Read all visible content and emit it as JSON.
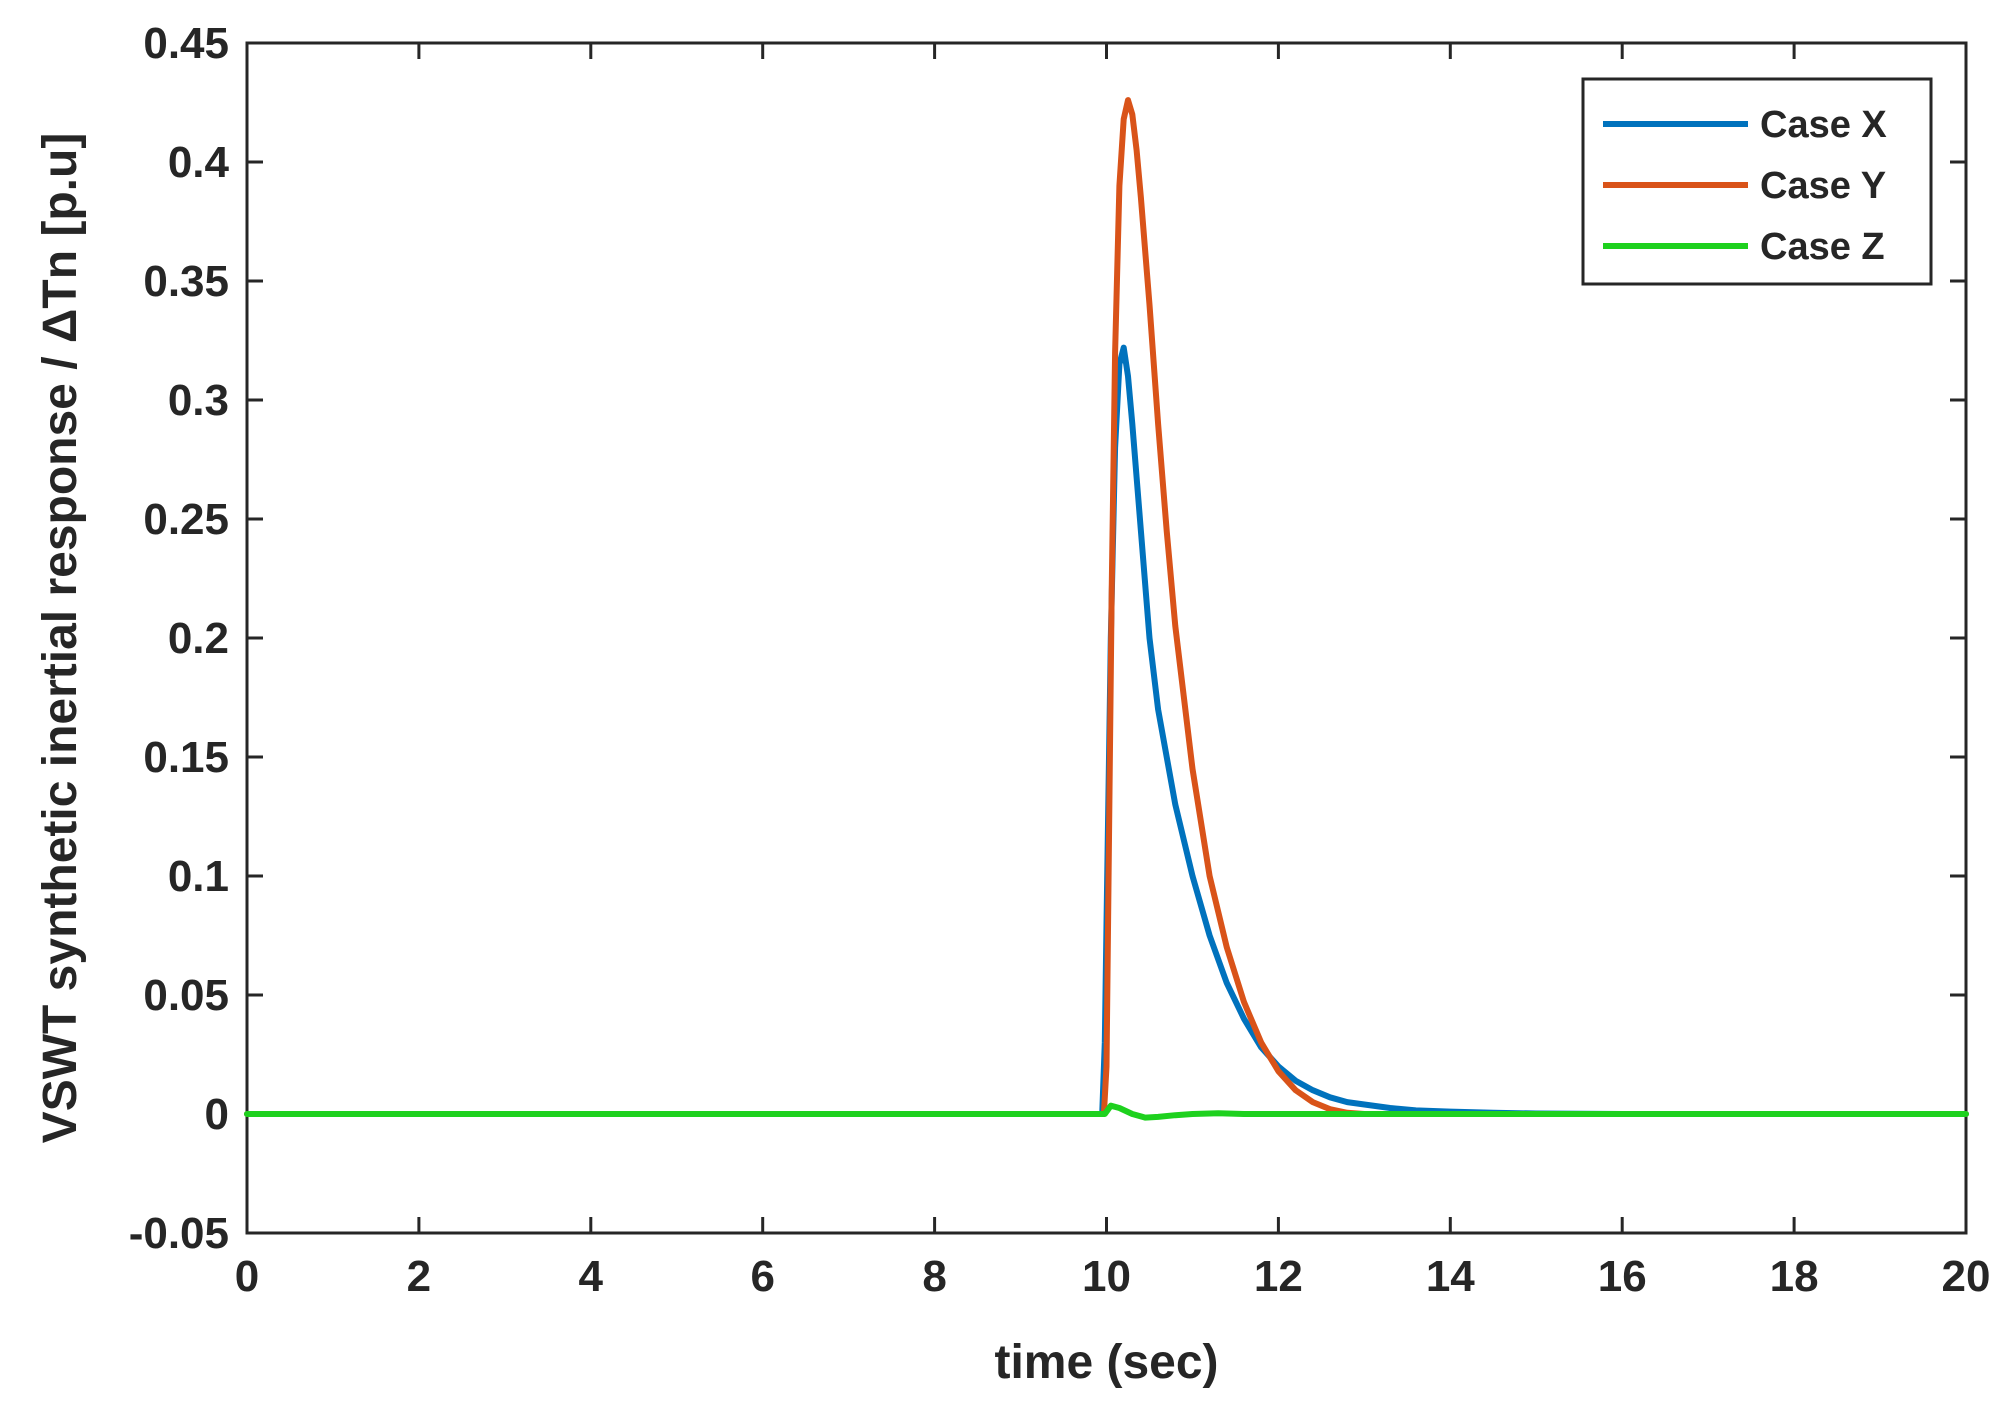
{
  "chart_data": {
    "type": "line",
    "title": "",
    "xlabel": "time (sec)",
    "ylabel": "VSWT synthetic inertial response / ΔTn [p.u]",
    "xlim": [
      0,
      20
    ],
    "ylim": [
      -0.05,
      0.45
    ],
    "xticks": [
      0,
      2,
      4,
      6,
      8,
      10,
      12,
      14,
      16,
      18,
      20
    ],
    "xtick_labels": [
      "0",
      "2",
      "4",
      "6",
      "8",
      "10",
      "12",
      "14",
      "16",
      "18",
      "20"
    ],
    "yticks": [
      -0.05,
      0,
      0.05,
      0.1,
      0.15,
      0.2,
      0.25,
      0.3,
      0.35,
      0.4,
      0.45
    ],
    "ytick_labels": [
      "-0.05",
      "0",
      "0.05",
      "0.1",
      "0.15",
      "0.2",
      "0.25",
      "0.3",
      "0.35",
      "0.4",
      "0.45"
    ],
    "grid": false,
    "legend_position": "top-right",
    "series": [
      {
        "name": "Case X",
        "color": "#0072BD",
        "x": [
          0,
          9.95,
          9.98,
          10.0,
          10.05,
          10.1,
          10.15,
          10.2,
          10.25,
          10.3,
          10.4,
          10.5,
          10.6,
          10.8,
          11.0,
          11.2,
          11.4,
          11.6,
          11.8,
          12.0,
          12.2,
          12.4,
          12.6,
          12.8,
          13.0,
          13.3,
          13.6,
          14.0,
          14.5,
          15.0,
          16.0,
          18.0,
          20.0
        ],
        "y": [
          0,
          0,
          0.03,
          0.08,
          0.2,
          0.28,
          0.315,
          0.322,
          0.31,
          0.29,
          0.245,
          0.2,
          0.17,
          0.13,
          0.1,
          0.075,
          0.055,
          0.04,
          0.028,
          0.02,
          0.014,
          0.01,
          0.007,
          0.005,
          0.004,
          0.0025,
          0.0015,
          0.001,
          0.0005,
          0.0002,
          0,
          0,
          0
        ]
      },
      {
        "name": "Case Y",
        "color": "#D95319",
        "x": [
          0,
          9.97,
          10.0,
          10.03,
          10.06,
          10.1,
          10.15,
          10.2,
          10.25,
          10.3,
          10.35,
          10.4,
          10.5,
          10.6,
          10.7,
          10.8,
          11.0,
          11.2,
          11.4,
          11.6,
          11.8,
          12.0,
          12.2,
          12.4,
          12.6,
          12.8,
          13.0,
          14.0,
          20.0
        ],
        "y": [
          0,
          0,
          0.02,
          0.12,
          0.22,
          0.32,
          0.39,
          0.418,
          0.426,
          0.42,
          0.405,
          0.385,
          0.34,
          0.29,
          0.245,
          0.205,
          0.145,
          0.1,
          0.07,
          0.047,
          0.03,
          0.018,
          0.01,
          0.005,
          0.002,
          0.0005,
          0,
          0,
          0
        ]
      },
      {
        "name": "Case Z",
        "color": "#1ED11E",
        "x": [
          0,
          9.98,
          10.05,
          10.15,
          10.3,
          10.45,
          10.6,
          10.8,
          11.0,
          11.3,
          11.6,
          12.0,
          13.0,
          20.0
        ],
        "y": [
          0,
          0,
          0.0035,
          0.0025,
          0.0,
          -0.0015,
          -0.0012,
          -0.0005,
          0.0,
          0.0003,
          0.0,
          0,
          0,
          0
        ]
      }
    ]
  }
}
